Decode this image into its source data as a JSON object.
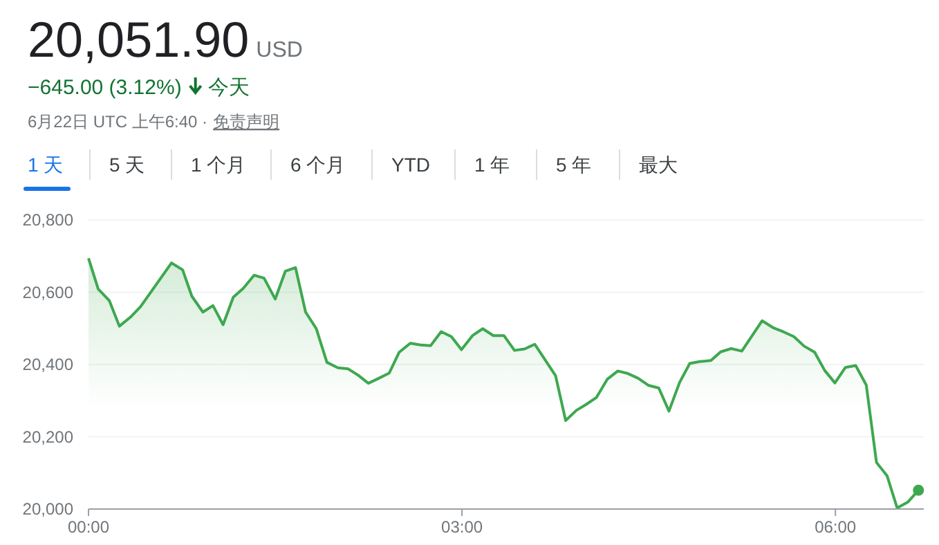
{
  "chart_data": {
    "type": "area",
    "title": "20,051.90",
    "annotations": [
      "USD",
      "−645.00 (3.12%)",
      "今天",
      "6月22日 UTC 上午6:40 ·",
      "免责声明",
      "1 天",
      "5 天",
      "1 个月",
      "6 个月",
      "YTD",
      "1 年",
      "5 年",
      "最大"
    ],
    "series": [
      {
        "color": "#3ea84f",
        "x": [
          0,
          0.078,
          0.167,
          0.248,
          0.337,
          0.418,
          0.667,
          0.756,
          0.83,
          0.919,
          1.0,
          1.081,
          1.163,
          1.244,
          1.33,
          1.41,
          1.5,
          1.581,
          1.663,
          1.744,
          1.83,
          1.915,
          2.003,
          2.085,
          2.167,
          2.248,
          2.333,
          2.415,
          2.496,
          2.585,
          2.667,
          2.748,
          2.833,
          2.915,
          2.996,
          3.085,
          3.167,
          3.252,
          3.337,
          3.422,
          3.504,
          3.585,
          3.752,
          3.833,
          3.919,
          4.0,
          4.081,
          4.167,
          4.252,
          4.333,
          4.415,
          4.5,
          4.581,
          4.663,
          4.748,
          4.83,
          4.911,
          5.0,
          5.078,
          5.163,
          5.248,
          5.411,
          5.504,
          5.585,
          5.667,
          5.748,
          5.833,
          5.915,
          5.996,
          6.081,
          6.163,
          6.248,
          6.33,
          6.415,
          6.496,
          6.581,
          6.667
        ],
        "values": [
          20694,
          20609,
          20577,
          20506,
          20531,
          20560,
          20681,
          20662,
          20589,
          20545,
          20563,
          20510,
          20586,
          20611,
          20647,
          20639,
          20581,
          20658,
          20668,
          20545,
          20499,
          20406,
          20391,
          20388,
          20370,
          20348,
          20362,
          20376,
          20434,
          20459,
          20454,
          20452,
          20491,
          20477,
          20441,
          20480,
          20499,
          20480,
          20480,
          20439,
          20443,
          20456,
          20369,
          20245,
          20273,
          20290,
          20309,
          20359,
          20382,
          20375,
          20362,
          20342,
          20335,
          20271,
          20350,
          20403,
          20408,
          20411,
          20435,
          20444,
          20437,
          20521,
          20501,
          20490,
          20477,
          20451,
          20434,
          20383,
          20349,
          20392,
          20397,
          20343,
          20129,
          20092,
          20003,
          20019,
          20052
        ]
      },
      {
        "type": "scatter",
        "color": "#3ea84f",
        "x": [
          6.667
        ],
        "values": [
          20052
        ]
      }
    ],
    "xlim": [
      0,
      6.71
    ],
    "ylim": [
      20000,
      20800
    ],
    "xticks": [
      {
        "value": 0,
        "label": "00:00"
      },
      {
        "value": 3,
        "label": "03:00"
      },
      {
        "value": 6,
        "label": "06:00"
      }
    ],
    "yticks": [
      {
        "value": 20000,
        "label": "20,000"
      },
      {
        "value": 20200,
        "label": "20,200"
      },
      {
        "value": 20400,
        "label": "20,400"
      },
      {
        "value": 20600,
        "label": "20,600"
      },
      {
        "value": 20800,
        "label": "20,800"
      }
    ],
    "grid": "y"
  }
}
